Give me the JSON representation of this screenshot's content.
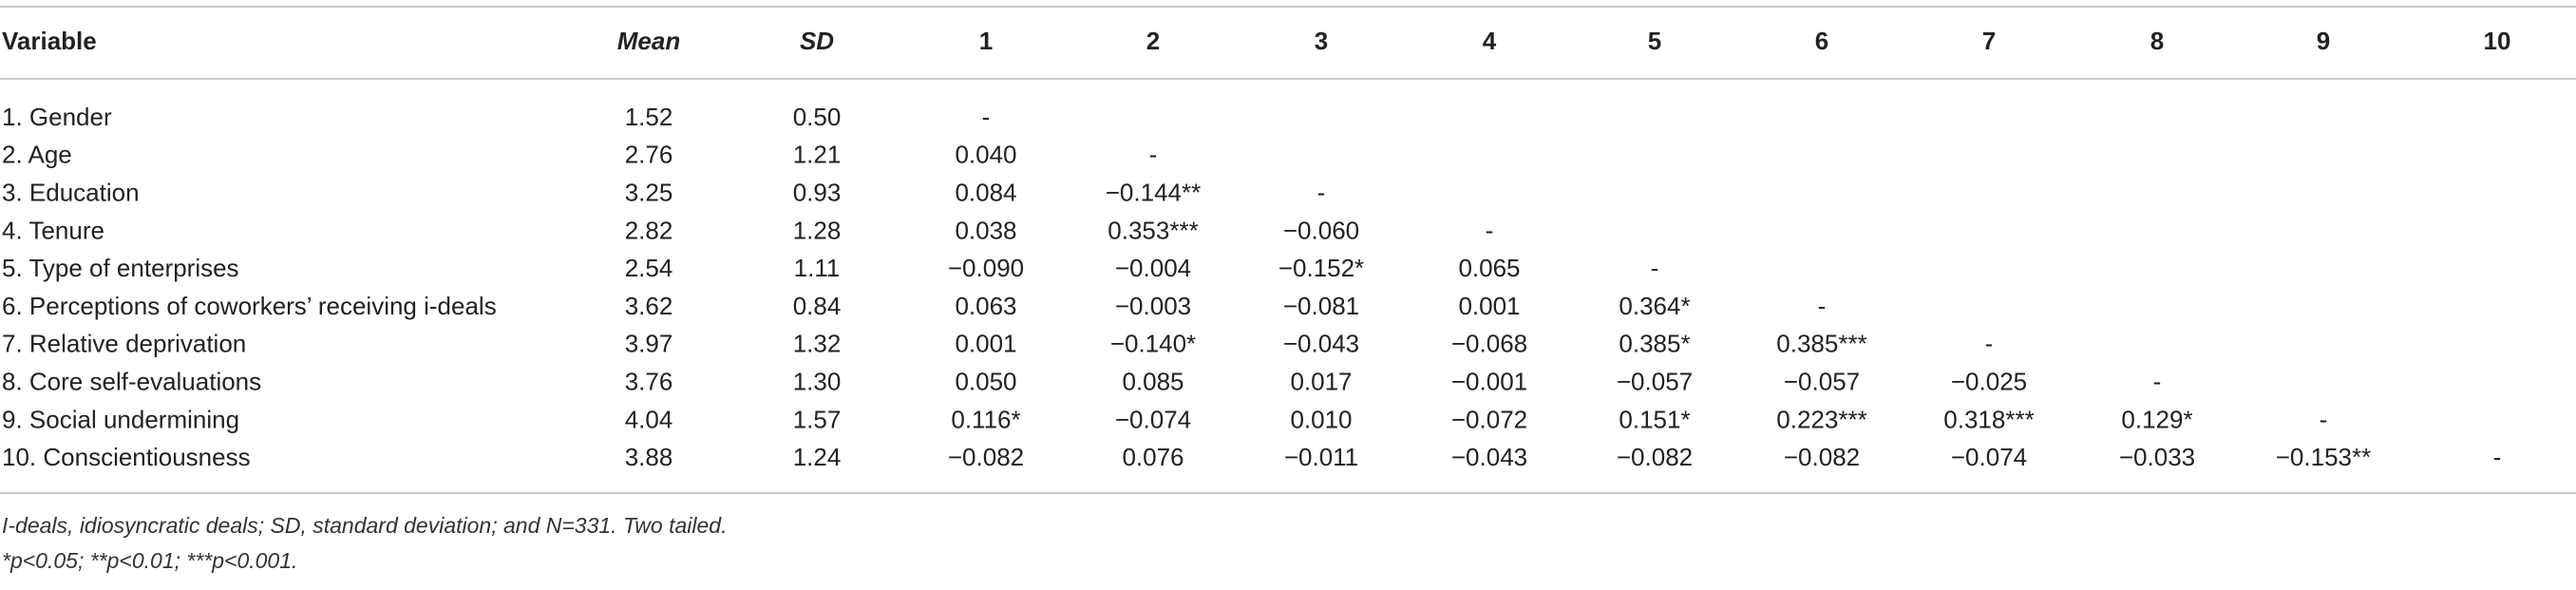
{
  "table": {
    "header": [
      "Variable",
      "Mean",
      "SD",
      "1",
      "2",
      "3",
      "4",
      "5",
      "6",
      "7",
      "8",
      "9",
      "10"
    ],
    "rows": [
      [
        "1. Gender",
        "1.52",
        "0.50",
        "-"
      ],
      [
        "2. Age",
        "2.76",
        "1.21",
        "0.040",
        "-"
      ],
      [
        "3. Education",
        "3.25",
        "0.93",
        "0.084",
        "−0.144**",
        "-"
      ],
      [
        "4. Tenure",
        "2.82",
        "1.28",
        "0.038",
        "0.353***",
        "−0.060",
        "-"
      ],
      [
        "5. Type of enterprises",
        "2.54",
        "1.11",
        "−0.090",
        "−0.004",
        "−0.152*",
        "0.065",
        "-"
      ],
      [
        "6. Perceptions of coworkers’ receiving i-deals",
        "3.62",
        "0.84",
        "0.063",
        "−0.003",
        "−0.081",
        "0.001",
        "0.364*",
        "-"
      ],
      [
        "7. Relative deprivation",
        "3.97",
        "1.32",
        "0.001",
        "−0.140*",
        "−0.043",
        "−0.068",
        "0.385*",
        "0.385***",
        "-"
      ],
      [
        "8. Core self-evaluations",
        "3.76",
        "1.30",
        "0.050",
        "0.085",
        "0.017",
        "−0.001",
        "−0.057",
        "−0.057",
        "−0.025",
        "-"
      ],
      [
        "9. Social undermining",
        "4.04",
        "1.57",
        "0.116*",
        "−0.074",
        "0.010",
        "−0.072",
        "0.151*",
        "0.223***",
        "0.318***",
        "0.129*",
        "-"
      ],
      [
        "10. Conscientiousness",
        "3.88",
        "1.24",
        "−0.082",
        "0.076",
        "−0.011",
        "−0.043",
        "−0.082",
        "−0.082",
        "−0.074",
        "−0.033",
        "−0.153**",
        "-"
      ]
    ],
    "notes": [
      "I-deals, idiosyncratic deals; SD, standard deviation; and N=331. Two tailed.",
      "*p<0.05; **p<0.01; ***p<0.001."
    ]
  }
}
